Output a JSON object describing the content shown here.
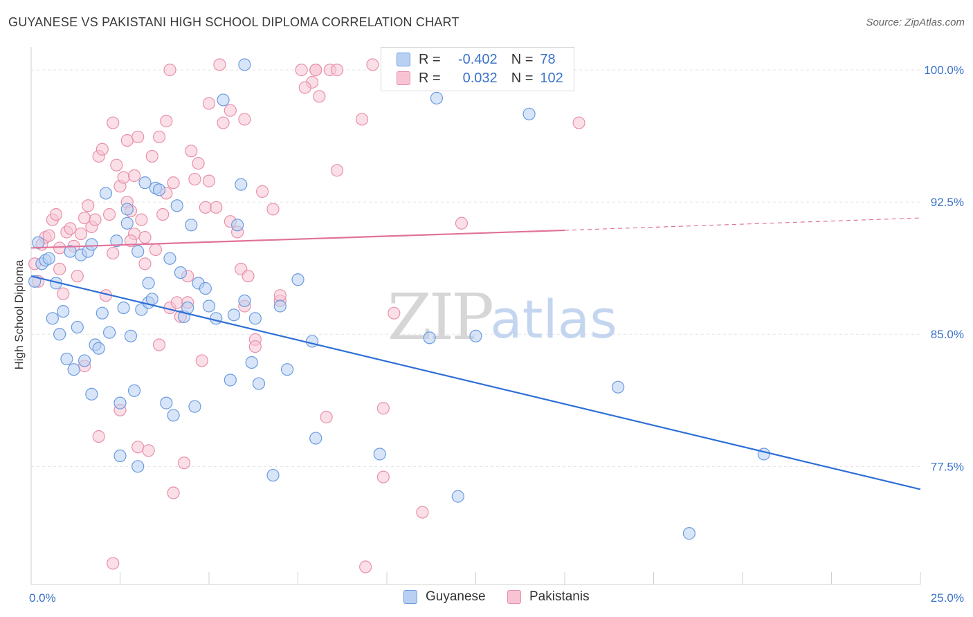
{
  "title": "GUYANESE VS PAKISTANI HIGH SCHOOL DIPLOMA CORRELATION CHART",
  "source": "Source: ZipAtlas.com",
  "watermark": {
    "zip": "ZIP",
    "atlas": "atlas"
  },
  "colors": {
    "blue_fill": "#b8d0f2",
    "blue_stroke": "#6a9be0",
    "blue_line": "#2e6fd6",
    "pink_fill": "#f8c4d4",
    "pink_stroke": "#e890ab",
    "pink_line": "#e0729a",
    "tick_label": "#3a72c8",
    "grid": "#e4e4e4"
  },
  "legend": {
    "rows": [
      {
        "r_label": "R =",
        "r_value": "-0.402",
        "n_label": "N =",
        "n_value": "78"
      },
      {
        "r_label": "R =",
        "r_value": "0.032",
        "n_label": "N =",
        "n_value": "102"
      }
    ]
  },
  "chart_data": {
    "type": "scatter",
    "title": "GUYANESE VS PAKISTANI HIGH SCHOOL DIPLOMA CORRELATION CHART",
    "xlabel": "",
    "ylabel": "High School Diploma",
    "xlim": [
      0,
      25
    ],
    "ylim": [
      70.8,
      101.3
    ],
    "x_tick_labels": [
      {
        "value": 0,
        "label": "0.0%"
      },
      {
        "value": 25,
        "label": "25.0%"
      }
    ],
    "y_ticks": [
      {
        "value": 77.5,
        "label": "77.5%"
      },
      {
        "value": 85.0,
        "label": "85.0%"
      },
      {
        "value": 92.5,
        "label": "92.5%"
      },
      {
        "value": 100.0,
        "label": "100.0%"
      }
    ],
    "grid": "horizontal dashed",
    "legend_position": "top-center",
    "series": [
      {
        "name": "Guyanese",
        "trend": {
          "x0": 0.0,
          "y0": 88.3,
          "x1": 25.0,
          "y1": 76.2
        },
        "points": [
          [
            0.1,
            88.0
          ],
          [
            0.2,
            90.2
          ],
          [
            0.3,
            89.0
          ],
          [
            0.4,
            89.2
          ],
          [
            0.5,
            89.3
          ],
          [
            0.6,
            85.9
          ],
          [
            0.7,
            87.9
          ],
          [
            0.8,
            85.0
          ],
          [
            0.9,
            86.3
          ],
          [
            1.0,
            83.6
          ],
          [
            1.1,
            89.7
          ],
          [
            1.2,
            83.0
          ],
          [
            1.3,
            85.4
          ],
          [
            1.4,
            89.5
          ],
          [
            1.5,
            83.5
          ],
          [
            1.6,
            89.7
          ],
          [
            1.7,
            90.1
          ],
          [
            1.7,
            81.6
          ],
          [
            1.8,
            84.4
          ],
          [
            1.9,
            84.2
          ],
          [
            2.0,
            86.2
          ],
          [
            2.1,
            93.0
          ],
          [
            2.2,
            85.1
          ],
          [
            2.4,
            90.3
          ],
          [
            2.5,
            81.1
          ],
          [
            2.5,
            78.1
          ],
          [
            2.6,
            86.5
          ],
          [
            2.7,
            92.1
          ],
          [
            2.7,
            91.3
          ],
          [
            2.8,
            84.9
          ],
          [
            2.9,
            81.8
          ],
          [
            3.0,
            89.7
          ],
          [
            3.0,
            77.5
          ],
          [
            3.1,
            86.4
          ],
          [
            3.2,
            93.6
          ],
          [
            3.3,
            86.8
          ],
          [
            3.3,
            87.9
          ],
          [
            3.4,
            87.0
          ],
          [
            3.5,
            93.3
          ],
          [
            3.6,
            93.2
          ],
          [
            3.8,
            81.1
          ],
          [
            3.9,
            89.3
          ],
          [
            4.0,
            80.4
          ],
          [
            4.1,
            92.3
          ],
          [
            4.2,
            88.5
          ],
          [
            4.3,
            86.0
          ],
          [
            4.4,
            86.5
          ],
          [
            4.5,
            91.2
          ],
          [
            4.6,
            80.9
          ],
          [
            4.7,
            87.9
          ],
          [
            4.9,
            87.6
          ],
          [
            5.0,
            86.6
          ],
          [
            5.2,
            85.9
          ],
          [
            5.4,
            98.3
          ],
          [
            5.6,
            82.4
          ],
          [
            5.7,
            86.1
          ],
          [
            5.8,
            91.2
          ],
          [
            5.9,
            93.5
          ],
          [
            6.0,
            86.9
          ],
          [
            6.2,
            83.4
          ],
          [
            6.3,
            85.9
          ],
          [
            6.4,
            82.2
          ],
          [
            6.8,
            77.0
          ],
          [
            7.0,
            86.6
          ],
          [
            7.2,
            83.0
          ],
          [
            7.5,
            88.1
          ],
          [
            7.9,
            84.6
          ],
          [
            8.0,
            79.1
          ],
          [
            9.8,
            78.2
          ],
          [
            11.2,
            84.8
          ],
          [
            11.4,
            98.4
          ],
          [
            12.0,
            75.8
          ],
          [
            12.5,
            84.9
          ],
          [
            14.0,
            97.5
          ],
          [
            16.5,
            82.0
          ],
          [
            18.5,
            73.7
          ],
          [
            20.6,
            78.2
          ],
          [
            6.0,
            100.3
          ]
        ]
      },
      {
        "name": "Pakistanis",
        "trend": {
          "x0": 0.0,
          "y0": 89.9,
          "x1": 15.0,
          "y1": 90.9,
          "dash_x1": 25.0,
          "dash_y1": 91.6
        },
        "points": [
          [
            0.1,
            89.0
          ],
          [
            0.2,
            88.0
          ],
          [
            0.3,
            90.1
          ],
          [
            0.4,
            90.5
          ],
          [
            0.5,
            90.6
          ],
          [
            0.6,
            91.5
          ],
          [
            0.7,
            91.8
          ],
          [
            0.8,
            88.7
          ],
          [
            0.9,
            87.3
          ],
          [
            1.0,
            90.8
          ],
          [
            1.1,
            91.0
          ],
          [
            1.2,
            90.0
          ],
          [
            1.3,
            88.3
          ],
          [
            1.4,
            90.7
          ],
          [
            1.5,
            91.6
          ],
          [
            1.6,
            92.3
          ],
          [
            1.7,
            91.1
          ],
          [
            1.8,
            91.5
          ],
          [
            1.9,
            79.2
          ],
          [
            1.9,
            95.1
          ],
          [
            2.0,
            95.5
          ],
          [
            2.1,
            87.2
          ],
          [
            2.2,
            91.8
          ],
          [
            2.3,
            89.6
          ],
          [
            2.3,
            97.0
          ],
          [
            2.4,
            94.6
          ],
          [
            2.5,
            93.4
          ],
          [
            2.5,
            80.7
          ],
          [
            2.6,
            93.9
          ],
          [
            2.7,
            96.0
          ],
          [
            2.7,
            92.5
          ],
          [
            2.8,
            92.0
          ],
          [
            2.9,
            90.7
          ],
          [
            2.9,
            94.0
          ],
          [
            3.0,
            96.2
          ],
          [
            3.0,
            78.6
          ],
          [
            3.1,
            91.5
          ],
          [
            3.2,
            90.5
          ],
          [
            3.2,
            89.0
          ],
          [
            3.3,
            78.4
          ],
          [
            3.4,
            95.1
          ],
          [
            3.5,
            89.8
          ],
          [
            3.6,
            96.2
          ],
          [
            3.7,
            91.8
          ],
          [
            3.8,
            93.0
          ],
          [
            3.8,
            97.1
          ],
          [
            3.9,
            86.5
          ],
          [
            4.0,
            93.6
          ],
          [
            4.0,
            76.0
          ],
          [
            4.1,
            86.8
          ],
          [
            4.2,
            86.0
          ],
          [
            4.3,
            77.7
          ],
          [
            4.4,
            86.8
          ],
          [
            4.4,
            88.3
          ],
          [
            4.6,
            93.8
          ],
          [
            4.7,
            94.7
          ],
          [
            4.9,
            92.2
          ],
          [
            5.0,
            98.1
          ],
          [
            5.0,
            93.7
          ],
          [
            5.2,
            92.2
          ],
          [
            5.4,
            97.0
          ],
          [
            5.6,
            97.7
          ],
          [
            5.8,
            90.8
          ],
          [
            5.9,
            88.7
          ],
          [
            6.0,
            86.6
          ],
          [
            6.0,
            97.2
          ],
          [
            6.3,
            84.7
          ],
          [
            6.3,
            84.3
          ],
          [
            6.8,
            92.1
          ],
          [
            7.0,
            86.9
          ],
          [
            7.0,
            87.2
          ],
          [
            7.6,
            100.0
          ],
          [
            7.9,
            99.3
          ],
          [
            8.0,
            100.0
          ],
          [
            8.0,
            100.0
          ],
          [
            8.1,
            98.5
          ],
          [
            8.3,
            80.3
          ],
          [
            8.4,
            100.0
          ],
          [
            8.6,
            100.0
          ],
          [
            8.6,
            94.3
          ],
          [
            9.3,
            97.2
          ],
          [
            9.4,
            71.8
          ],
          [
            9.9,
            76.9
          ],
          [
            9.9,
            80.8
          ],
          [
            11.0,
            74.9
          ],
          [
            12.1,
            91.3
          ],
          [
            15.4,
            97.0
          ],
          [
            2.3,
            72.0
          ],
          [
            3.9,
            100.0
          ],
          [
            4.8,
            83.5
          ],
          [
            6.1,
            88.3
          ],
          [
            7.7,
            99.0
          ],
          [
            9.6,
            100.3
          ],
          [
            5.6,
            91.4
          ],
          [
            0.8,
            89.9
          ],
          [
            1.5,
            83.2
          ],
          [
            2.8,
            90.3
          ],
          [
            3.6,
            84.4
          ],
          [
            4.5,
            95.4
          ],
          [
            5.3,
            100.3
          ],
          [
            6.5,
            93.1
          ],
          [
            10.2,
            86.2
          ]
        ]
      }
    ]
  },
  "bottom_legend": [
    {
      "label": "Guyanese"
    },
    {
      "label": "Pakistanis"
    }
  ]
}
